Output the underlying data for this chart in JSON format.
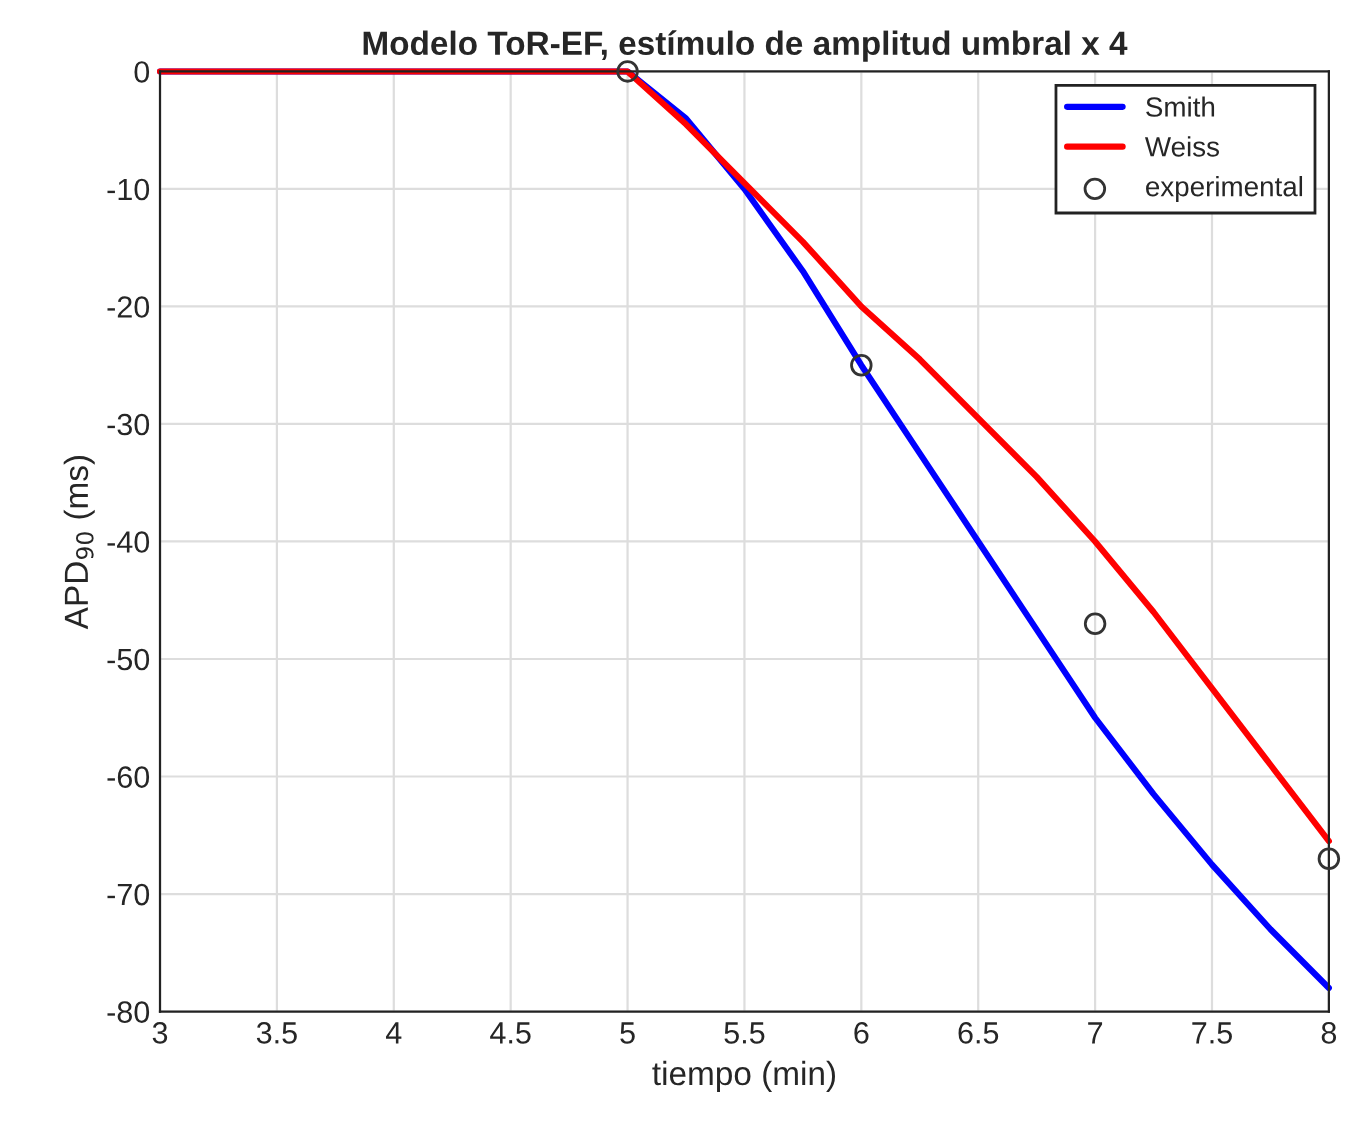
{
  "chart_data": {
    "type": "line",
    "title": "Modelo ToR-EF, estímulo de amplitud umbral x 4",
    "xlabel": "tiempo (min)",
    "ylabel": "APD$_{90}$ (ms)",
    "series": [
      {
        "name": "Smith",
        "color": "#0000ff",
        "marker": "none",
        "x": [
          3,
          5,
          5.25,
          5.5,
          5.75,
          6,
          6.25,
          6.5,
          6.75,
          7,
          7.25,
          7.5,
          7.75,
          8
        ],
        "values": [
          0,
          0,
          -4,
          -10,
          -17,
          -25,
          -32.5,
          -40,
          -47.5,
          -55,
          -61.5,
          -67.5,
          -73,
          -78
        ]
      },
      {
        "name": "Weiss",
        "color": "#ff0000",
        "marker": "none",
        "x": [
          3,
          5,
          5.25,
          5.5,
          5.75,
          6,
          6.25,
          6.5,
          6.75,
          7,
          7.25,
          7.5,
          7.75,
          8
        ],
        "values": [
          0,
          0,
          -4.5,
          -9.5,
          -14.5,
          -20,
          -24.5,
          -29.5,
          -34.5,
          -40,
          -46,
          -52.5,
          -59,
          -65.5
        ]
      },
      {
        "name": "experimental",
        "color": "#333333",
        "type": "scatter",
        "marker": "circle",
        "x": [
          5,
          6,
          7,
          8
        ],
        "values": [
          0,
          -25,
          -47,
          -67
        ]
      }
    ],
    "xlim": [
      3,
      8
    ],
    "ylim": [
      -80,
      0
    ],
    "xticks": [
      3,
      3.5,
      4,
      4.5,
      5,
      5.5,
      6,
      6.5,
      7,
      7.5,
      8
    ],
    "yticks": [
      -80,
      -70,
      -60,
      -50,
      -40,
      -30,
      -20,
      -10,
      0
    ],
    "grid": true,
    "legend": "top right"
  }
}
